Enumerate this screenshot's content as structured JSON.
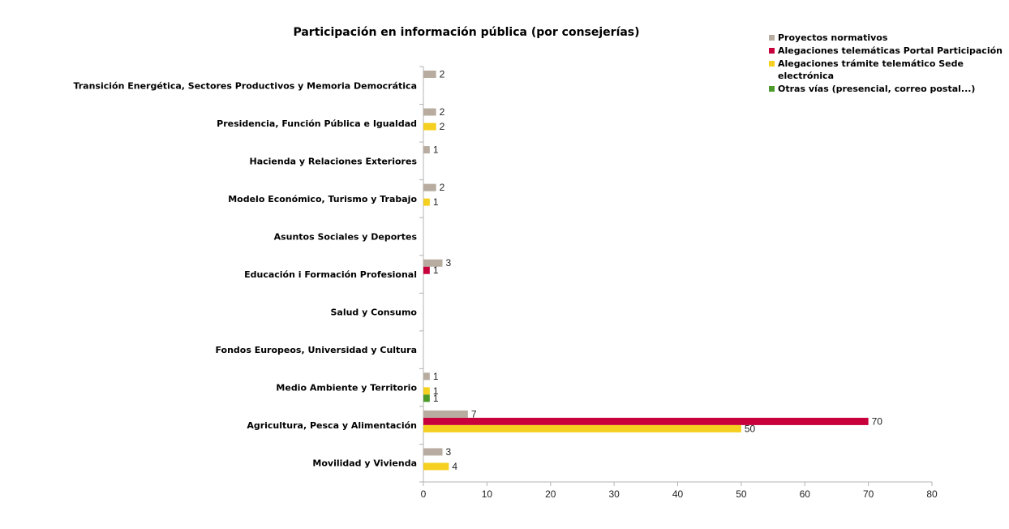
{
  "chart_data": {
    "type": "bar",
    "orientation": "horizontal",
    "title": "Participación en información pública (por consejerías)",
    "xlabel": "",
    "ylabel": "",
    "xlim": [
      0,
      80
    ],
    "x_ticks": [
      "0",
      "10",
      "20",
      "30",
      "40",
      "50",
      "60",
      "70",
      "80"
    ],
    "grid": false,
    "legend_position": "top-right",
    "categories": [
      "Transición Energética, Sectores Productivos y Memoria Democrática",
      "Presidencia, Función Pública e Igualdad",
      "Hacienda y Relaciones Exteriores",
      "Modelo Económico, Turismo y Trabajo",
      "Asuntos Sociales y Deportes",
      "Educación i Formación Profesional",
      "Salud y  Consumo",
      "Fondos Europeos, Universidad y Cultura",
      "Medio Ambiente y Territorio",
      "Agricultura, Pesca y Alimentación",
      "Movilidad y Vivienda"
    ],
    "series": [
      {
        "name": "Proyectos normativos",
        "color": "#b8aca0",
        "values": [
          2,
          2,
          1,
          2,
          null,
          3,
          null,
          null,
          1,
          7,
          3
        ]
      },
      {
        "name": "Alegaciones telemáticas Portal Participación",
        "color": "#c8003c",
        "values": [
          null,
          null,
          null,
          null,
          null,
          1,
          null,
          null,
          null,
          70,
          null
        ]
      },
      {
        "name": "Alegaciones trámite telemático Sede electrónica",
        "color": "#f5d020",
        "values": [
          null,
          2,
          null,
          1,
          null,
          null,
          null,
          null,
          1,
          50,
          4
        ]
      },
      {
        "name": "Otras vías (presencial, correo postal...)",
        "color": "#4c9a2a",
        "values": [
          null,
          null,
          null,
          null,
          null,
          null,
          null,
          null,
          1,
          null,
          null
        ]
      }
    ]
  },
  "legend": {
    "lines": [
      [
        "Proyectos normativos"
      ],
      [
        "Alegaciones telemáticas Portal Participación"
      ],
      [
        "Alegaciones trámite telemático Sede",
        "electrónica"
      ],
      [
        "Otras vías (presencial, correo postal...)"
      ]
    ]
  }
}
